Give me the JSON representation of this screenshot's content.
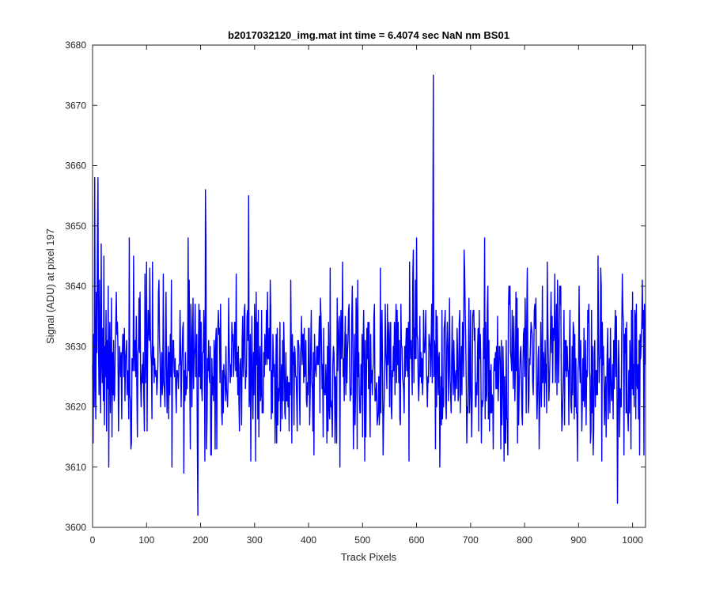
{
  "chart_data": {
    "type": "line",
    "title": "b2017032120_img.mat int time = 6.4074 sec  NaN nm BS01",
    "xlabel": "Track Pixels",
    "ylabel": "Signal (ADU) at pixel 197",
    "xlim": [
      0,
      1024
    ],
    "ylim": [
      3600,
      3680
    ],
    "xticks": [
      0,
      100,
      200,
      300,
      400,
      500,
      600,
      700,
      800,
      900,
      1000
    ],
    "yticks": [
      3600,
      3610,
      3620,
      3630,
      3640,
      3650,
      3660,
      3670,
      3680
    ],
    "grid": false,
    "line_color": "#0000ff",
    "noise": {
      "mean": 3627,
      "min": 3602,
      "max": 3675,
      "typical_low": 3612,
      "typical_high": 3645
    },
    "series": [
      {
        "values": [
          3627,
          3614,
          3632,
          3620,
          3658,
          3625,
          3618,
          3639,
          3629,
          3646,
          3612,
          3630,
          3622,
          3641,
          3626,
          3619,
          3647,
          3628,
          3624,
          3633,
          3621,
          3645,
          3617,
          3630,
          3625,
          3636,
          3616,
          3631,
          3623,
          3640,
          3610,
          3628,
          3634,
          3619,
          3626,
          3638,
          3615,
          3629,
          3622,
          3631
        ]
      }
    ],
    "key_points": [
      {
        "x": 10,
        "y": 3658
      },
      {
        "x": 195,
        "y": 3602
      },
      {
        "x": 209,
        "y": 3656
      },
      {
        "x": 289,
        "y": 3655
      },
      {
        "x": 631,
        "y": 3675
      },
      {
        "x": 972,
        "y": 3604
      }
    ]
  }
}
